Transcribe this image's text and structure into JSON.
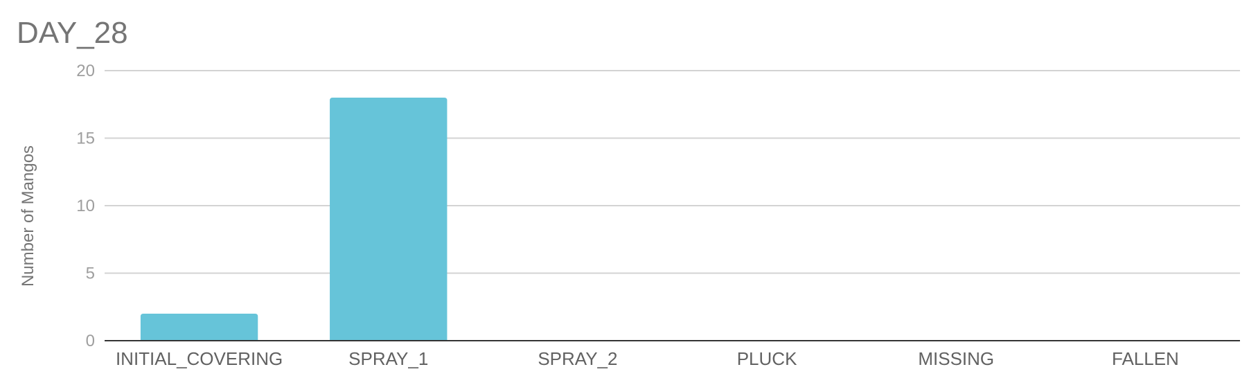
{
  "chart_data": {
    "type": "bar",
    "title": "DAY_28",
    "xlabel": "",
    "ylabel": "Number of Mangos",
    "categories": [
      "INITIAL_COVERING",
      "SPRAY_1",
      "SPRAY_2",
      "PLUCK",
      "MISSING",
      "FALLEN"
    ],
    "values": [
      2,
      18,
      0,
      0,
      0,
      0
    ],
    "ylim": [
      0,
      20
    ],
    "yticks": [
      "0",
      "5",
      "10",
      "15",
      "20"
    ],
    "grid": true,
    "legend": "none",
    "colors": {
      "bar": "#66c4d9",
      "grid": "#d3d3d3",
      "baseline": "#333333",
      "title": "#757575"
    }
  }
}
